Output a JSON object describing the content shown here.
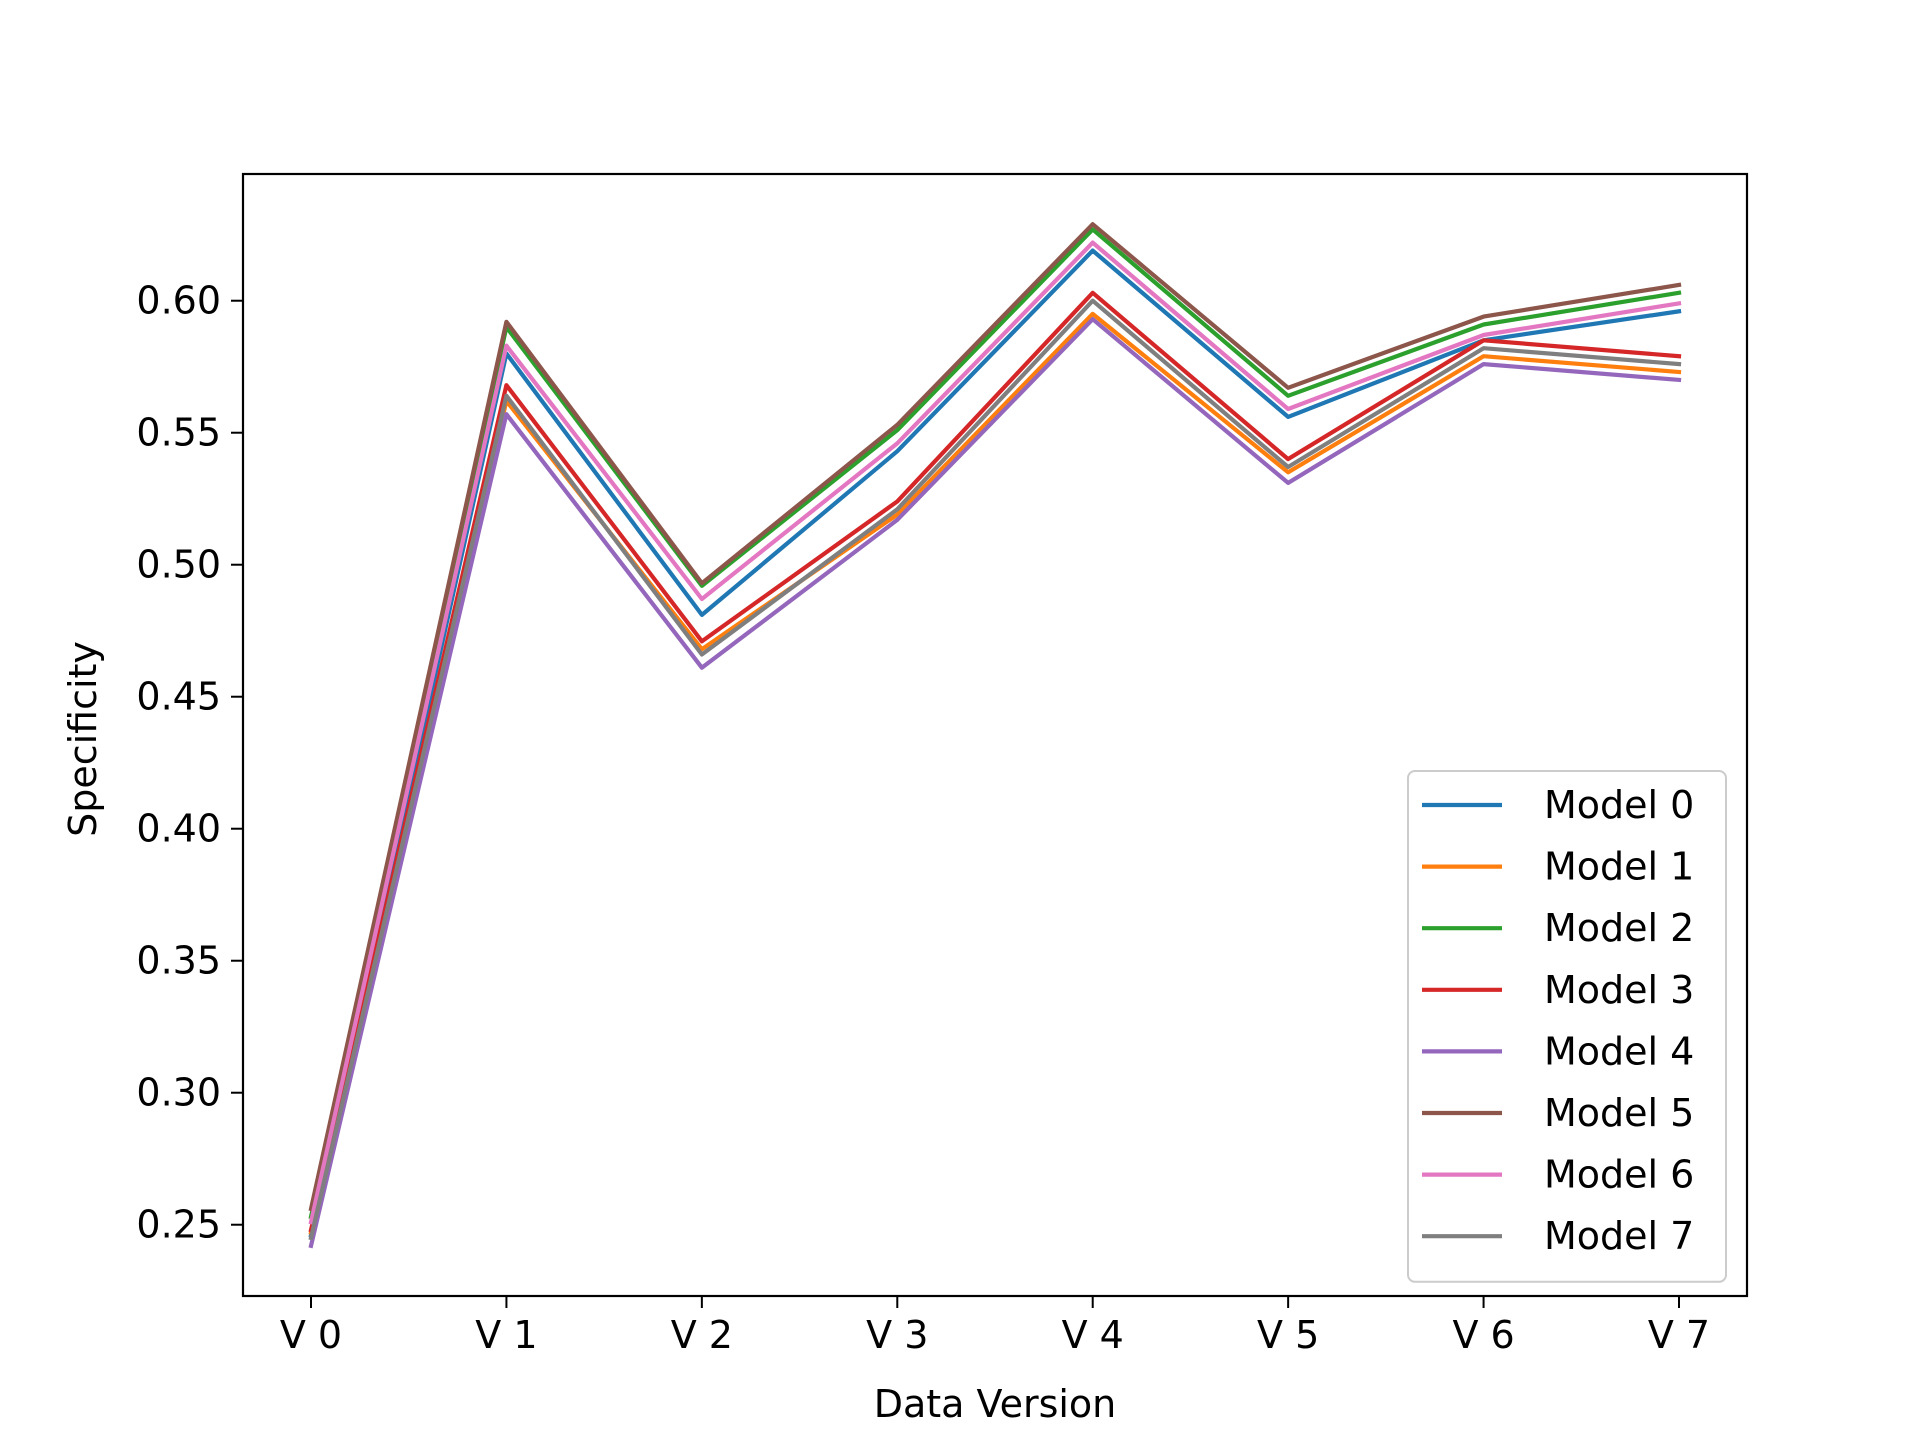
{
  "chart_data": {
    "type": "line",
    "title": "",
    "xlabel": "Data Version",
    "ylabel": "Specificity",
    "categories": [
      "V 0",
      "V 1",
      "V 2",
      "V 3",
      "V 4",
      "V 5",
      "V 6",
      "V 7"
    ],
    "ylim": [
      0.223,
      0.648
    ],
    "yticks": [
      0.25,
      0.3,
      0.35,
      0.4,
      0.45,
      0.5,
      0.55,
      0.6
    ],
    "ytick_labels": [
      "0.25",
      "0.30",
      "0.35",
      "0.40",
      "0.45",
      "0.50",
      "0.55",
      "0.60"
    ],
    "grid": false,
    "legend_position": "lower-right",
    "series": [
      {
        "name": "Model 0",
        "color": "#1f77b4",
        "values": [
          0.246,
          0.58,
          0.481,
          0.543,
          0.619,
          0.556,
          0.585,
          0.596
        ]
      },
      {
        "name": "Model 1",
        "color": "#ff7f0e",
        "values": [
          0.247,
          0.562,
          0.468,
          0.519,
          0.595,
          0.535,
          0.579,
          0.573
        ]
      },
      {
        "name": "Model 2",
        "color": "#2ca02c",
        "values": [
          0.253,
          0.59,
          0.492,
          0.551,
          0.627,
          0.564,
          0.591,
          0.603
        ]
      },
      {
        "name": "Model 3",
        "color": "#d62728",
        "values": [
          0.248,
          0.568,
          0.471,
          0.524,
          0.603,
          0.54,
          0.585,
          0.579
        ]
      },
      {
        "name": "Model 4",
        "color": "#9467bd",
        "values": [
          0.242,
          0.557,
          0.461,
          0.517,
          0.593,
          0.531,
          0.576,
          0.57
        ]
      },
      {
        "name": "Model 5",
        "color": "#8c564b",
        "values": [
          0.256,
          0.592,
          0.493,
          0.553,
          0.629,
          0.567,
          0.594,
          0.606
        ]
      },
      {
        "name": "Model 6",
        "color": "#e377c2",
        "values": [
          0.251,
          0.583,
          0.487,
          0.546,
          0.622,
          0.559,
          0.587,
          0.599
        ]
      },
      {
        "name": "Model 7",
        "color": "#7f7f7f",
        "values": [
          0.245,
          0.564,
          0.466,
          0.521,
          0.6,
          0.537,
          0.582,
          0.576
        ]
      }
    ]
  }
}
